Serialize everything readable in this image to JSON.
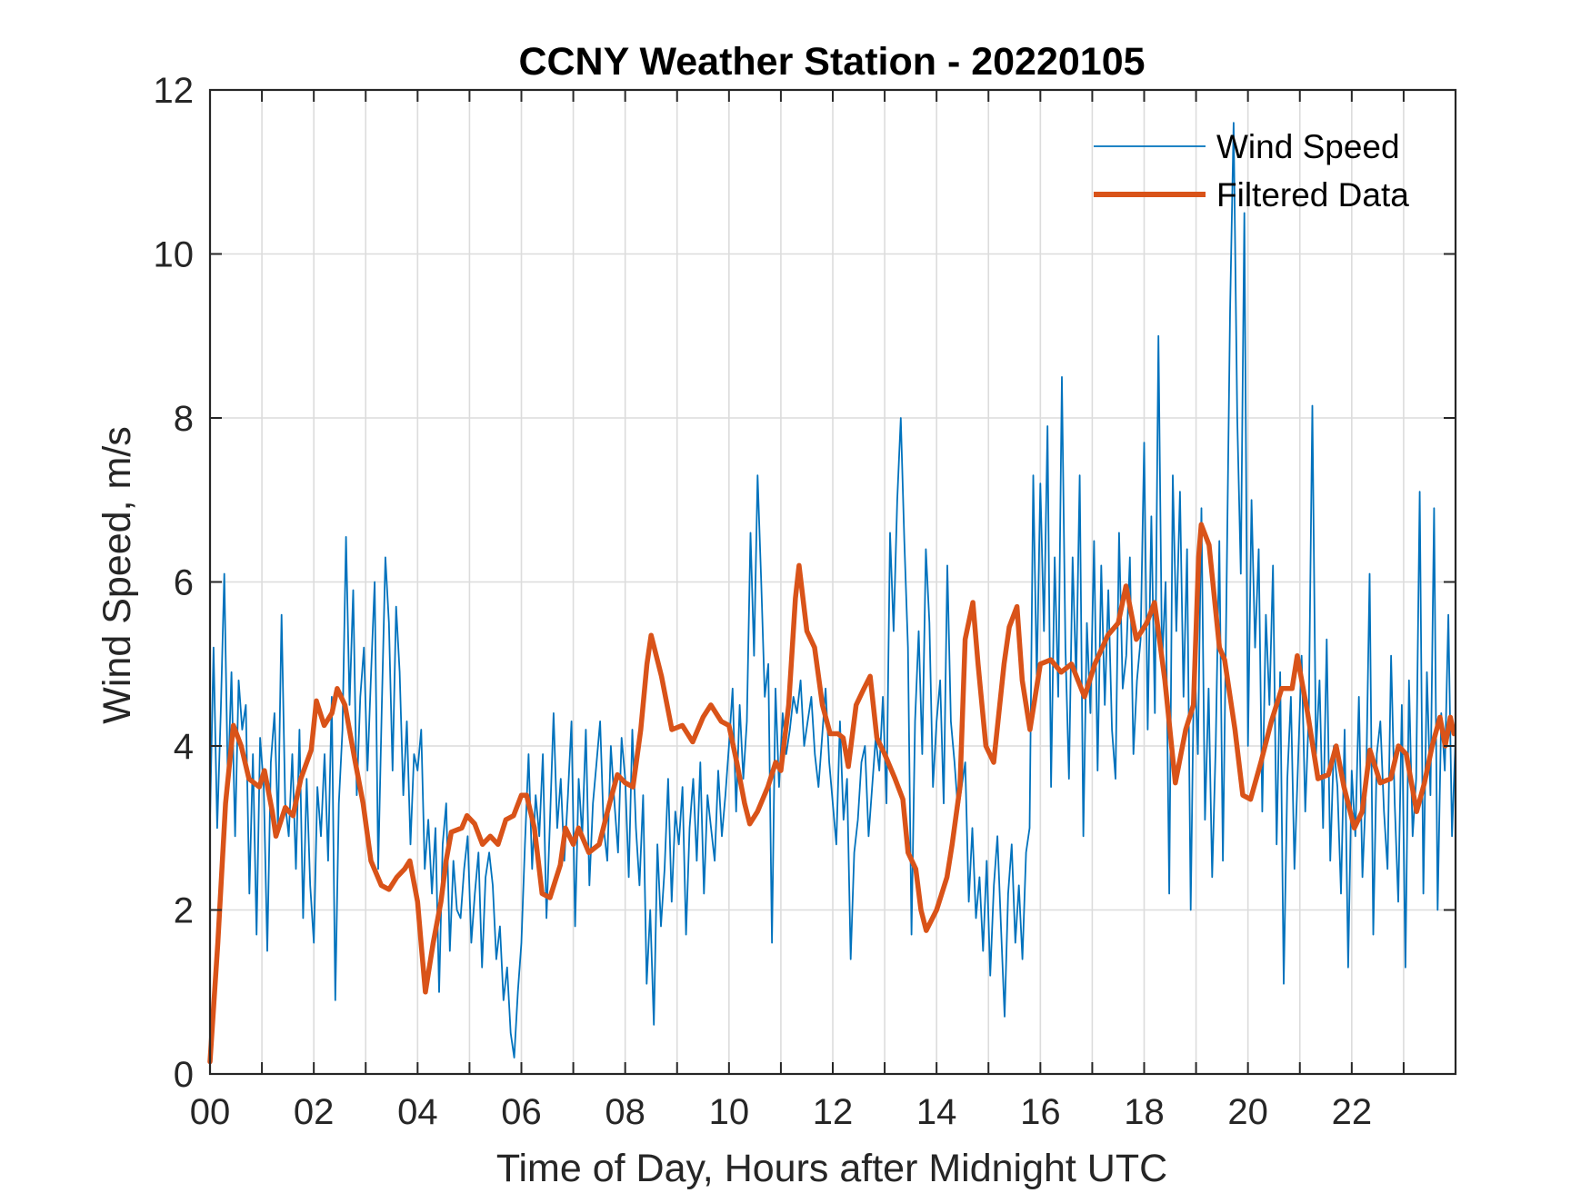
{
  "chart_data": {
    "type": "line",
    "title": "CCNY Weather Station - 20220105",
    "xlabel": "Time of Day, Hours after Midnight UTC",
    "ylabel": "Wind Speed, m/s",
    "xlim": [
      0,
      24
    ],
    "ylim": [
      0,
      12
    ],
    "grid": true,
    "legend_position": "top-right",
    "x_ticks": [
      0,
      2,
      4,
      6,
      8,
      10,
      12,
      14,
      16,
      18,
      20,
      22
    ],
    "x_tick_labels": [
      "00",
      "02",
      "04",
      "06",
      "08",
      "10",
      "12",
      "14",
      "16",
      "18",
      "20",
      "22"
    ],
    "x_minor_grid_step": 1,
    "y_ticks": [
      0,
      2,
      4,
      6,
      8,
      10,
      12
    ],
    "y_tick_labels": [
      "0",
      "2",
      "4",
      "6",
      "8",
      "10",
      "12"
    ],
    "series": [
      {
        "name": "Wind Speed",
        "color": "#0072BD",
        "style": "thin",
        "sample_interval_hours": 0.05,
        "values": [
          3.1,
          5.2,
          3.0,
          4.4,
          6.1,
          3.5,
          4.9,
          2.9,
          4.8,
          4.2,
          4.5,
          2.2,
          3.9,
          1.7,
          4.1,
          3.5,
          1.5,
          3.8,
          4.4,
          3.0,
          5.6,
          3.3,
          2.9,
          3.9,
          2.5,
          4.2,
          1.9,
          3.6,
          2.3,
          1.6,
          3.5,
          2.9,
          3.9,
          2.6,
          4.6,
          0.9,
          3.3,
          4.2,
          6.55,
          4.5,
          5.9,
          3.4,
          4.6,
          5.2,
          3.7,
          4.9,
          6.0,
          2.5,
          4.5,
          6.3,
          5.5,
          3.7,
          5.7,
          4.9,
          3.4,
          4.3,
          2.8,
          3.9,
          3.7,
          4.2,
          2.5,
          3.1,
          2.2,
          3.0,
          1.0,
          2.8,
          3.3,
          1.5,
          2.6,
          2.0,
          1.9,
          2.5,
          2.9,
          1.6,
          2.2,
          2.7,
          1.3,
          2.4,
          2.7,
          2.3,
          1.4,
          1.8,
          0.9,
          1.3,
          0.5,
          0.2,
          1.0,
          1.6,
          2.8,
          3.9,
          2.5,
          3.4,
          2.9,
          3.9,
          1.9,
          3.1,
          4.4,
          3.0,
          3.6,
          2.6,
          3.4,
          4.3,
          1.8,
          3.6,
          2.9,
          4.2,
          2.3,
          3.3,
          3.8,
          4.3,
          3.0,
          2.6,
          4.0,
          3.3,
          2.7,
          4.1,
          3.6,
          2.4,
          4.2,
          3.0,
          2.3,
          3.4,
          1.1,
          2.0,
          0.6,
          2.8,
          1.8,
          2.5,
          3.6,
          2.1,
          3.2,
          2.8,
          3.5,
          1.7,
          3.0,
          3.6,
          2.6,
          3.8,
          2.2,
          3.4,
          3.0,
          2.6,
          3.7,
          2.9,
          3.4,
          4.0,
          4.7,
          3.2,
          4.5,
          3.6,
          4.3,
          6.6,
          5.1,
          7.3,
          6.0,
          4.6,
          5.0,
          1.6,
          4.7,
          3.5,
          4.4,
          3.9,
          4.2,
          4.6,
          4.4,
          4.8,
          4.0,
          4.3,
          4.6,
          3.9,
          3.5,
          4.1,
          4.7,
          3.8,
          3.3,
          2.8,
          4.3,
          3.1,
          3.6,
          1.4,
          2.7,
          3.1,
          3.8,
          4.0,
          2.9,
          3.5,
          4.1,
          3.7,
          4.6,
          3.3,
          6.6,
          5.4,
          7.0,
          8.0,
          6.5,
          5.2,
          1.7,
          4.3,
          5.4,
          3.9,
          6.4,
          5.5,
          3.5,
          4.3,
          4.8,
          3.3,
          6.2,
          4.3,
          3.8,
          3.2,
          3.5,
          3.8,
          2.1,
          3.0,
          1.9,
          2.4,
          1.5,
          2.6,
          1.2,
          2.3,
          2.9,
          1.8,
          0.7,
          2.2,
          2.8,
          1.6,
          2.3,
          1.4,
          2.7,
          3.0,
          7.3,
          4.8,
          7.2,
          5.4,
          7.9,
          3.5,
          6.3,
          4.6,
          8.5,
          5.2,
          3.6,
          6.3,
          4.8,
          7.3,
          2.9,
          5.5,
          4.4,
          6.5,
          3.7,
          6.2,
          4.5,
          5.9,
          4.2,
          3.6,
          6.6,
          4.7,
          5.1,
          6.3,
          3.9,
          4.8,
          5.3,
          7.7,
          4.2,
          6.8,
          4.4,
          9.0,
          5.0,
          6.0,
          2.2,
          7.3,
          5.4,
          7.1,
          4.6,
          6.4,
          2.0,
          5.2,
          3.9,
          6.9,
          3.1,
          4.7,
          2.4,
          4.0,
          6.5,
          2.6,
          5.8,
          9.3,
          11.6,
          8.0,
          6.1,
          10.5,
          4.0,
          7.0,
          5.2,
          6.4,
          3.2,
          5.6,
          4.5,
          6.2,
          2.8,
          4.9,
          1.1,
          3.6,
          4.6,
          2.5,
          3.8,
          5.1,
          3.2,
          4.4,
          8.15,
          3.9,
          4.8,
          3.0,
          5.3,
          2.6,
          4.0,
          3.5,
          2.2,
          4.2,
          1.3,
          3.7,
          2.9,
          4.6,
          2.4,
          3.5,
          6.1,
          1.7,
          3.9,
          4.3,
          3.2,
          2.5,
          5.1,
          3.3,
          2.1,
          4.5,
          1.3,
          4.8,
          2.9,
          3.6,
          7.1,
          2.2,
          4.9,
          3.4,
          6.9,
          2.0,
          4.4,
          3.7,
          5.6,
          2.9,
          4.1
        ]
      },
      {
        "name": "Filtered Data",
        "color": "#D95319",
        "style": "thick",
        "points": [
          [
            0,
            0.15
          ],
          [
            0.15,
            1.6
          ],
          [
            0.3,
            3.3
          ],
          [
            0.45,
            4.25
          ],
          [
            0.6,
            4.0
          ],
          [
            0.75,
            3.6
          ],
          [
            0.95,
            3.5
          ],
          [
            1.05,
            3.7
          ],
          [
            1.2,
            3.2
          ],
          [
            1.27,
            2.9
          ],
          [
            1.45,
            3.25
          ],
          [
            1.6,
            3.15
          ],
          [
            1.75,
            3.6
          ],
          [
            1.95,
            3.95
          ],
          [
            2.05,
            4.55
          ],
          [
            2.2,
            4.25
          ],
          [
            2.35,
            4.4
          ],
          [
            2.45,
            4.7
          ],
          [
            2.6,
            4.5
          ],
          [
            2.8,
            3.8
          ],
          [
            2.95,
            3.3
          ],
          [
            3.1,
            2.6
          ],
          [
            3.3,
            2.3
          ],
          [
            3.45,
            2.25
          ],
          [
            3.6,
            2.4
          ],
          [
            3.75,
            2.5
          ],
          [
            3.85,
            2.6
          ],
          [
            4.0,
            2.1
          ],
          [
            4.08,
            1.5
          ],
          [
            4.15,
            1.0
          ],
          [
            4.3,
            1.6
          ],
          [
            4.45,
            2.1
          ],
          [
            4.55,
            2.6
          ],
          [
            4.65,
            2.95
          ],
          [
            4.85,
            3.0
          ],
          [
            4.95,
            3.15
          ],
          [
            5.1,
            3.05
          ],
          [
            5.25,
            2.8
          ],
          [
            5.4,
            2.9
          ],
          [
            5.55,
            2.8
          ],
          [
            5.7,
            3.1
          ],
          [
            5.85,
            3.15
          ],
          [
            6.0,
            3.4
          ],
          [
            6.1,
            3.4
          ],
          [
            6.25,
            3.0
          ],
          [
            6.4,
            2.2
          ],
          [
            6.55,
            2.15
          ],
          [
            6.75,
            2.55
          ],
          [
            6.85,
            3.0
          ],
          [
            7.0,
            2.8
          ],
          [
            7.1,
            3.0
          ],
          [
            7.3,
            2.7
          ],
          [
            7.5,
            2.8
          ],
          [
            7.7,
            3.3
          ],
          [
            7.85,
            3.65
          ],
          [
            8.0,
            3.55
          ],
          [
            8.15,
            3.5
          ],
          [
            8.3,
            4.2
          ],
          [
            8.42,
            5.0
          ],
          [
            8.5,
            5.35
          ],
          [
            8.7,
            4.85
          ],
          [
            8.9,
            4.2
          ],
          [
            9.1,
            4.25
          ],
          [
            9.3,
            4.05
          ],
          [
            9.5,
            4.35
          ],
          [
            9.65,
            4.5
          ],
          [
            9.85,
            4.3
          ],
          [
            10.0,
            4.25
          ],
          [
            10.15,
            3.8
          ],
          [
            10.3,
            3.3
          ],
          [
            10.4,
            3.05
          ],
          [
            10.55,
            3.2
          ],
          [
            10.75,
            3.5
          ],
          [
            10.9,
            3.8
          ],
          [
            11.0,
            3.7
          ],
          [
            11.15,
            4.5
          ],
          [
            11.28,
            5.8
          ],
          [
            11.35,
            6.2
          ],
          [
            11.5,
            5.4
          ],
          [
            11.65,
            5.2
          ],
          [
            11.8,
            4.5
          ],
          [
            11.95,
            4.15
          ],
          [
            12.1,
            4.15
          ],
          [
            12.2,
            4.1
          ],
          [
            12.3,
            3.75
          ],
          [
            12.45,
            4.5
          ],
          [
            12.6,
            4.7
          ],
          [
            12.72,
            4.85
          ],
          [
            12.85,
            4.1
          ],
          [
            13.0,
            3.9
          ],
          [
            13.2,
            3.6
          ],
          [
            13.35,
            3.35
          ],
          [
            13.45,
            2.7
          ],
          [
            13.6,
            2.5
          ],
          [
            13.7,
            2.0
          ],
          [
            13.8,
            1.75
          ],
          [
            14.0,
            2.0
          ],
          [
            14.2,
            2.4
          ],
          [
            14.3,
            2.8
          ],
          [
            14.45,
            3.5
          ],
          [
            14.55,
            5.3
          ],
          [
            14.7,
            5.75
          ],
          [
            14.8,
            5.0
          ],
          [
            14.95,
            4.0
          ],
          [
            15.1,
            3.8
          ],
          [
            15.3,
            5.0
          ],
          [
            15.4,
            5.45
          ],
          [
            15.55,
            5.7
          ],
          [
            15.65,
            4.8
          ],
          [
            15.8,
            4.2
          ],
          [
            16.0,
            5.0
          ],
          [
            16.2,
            5.05
          ],
          [
            16.4,
            4.9
          ],
          [
            16.6,
            5.0
          ],
          [
            16.85,
            4.6
          ],
          [
            17.05,
            5.0
          ],
          [
            17.3,
            5.35
          ],
          [
            17.5,
            5.5
          ],
          [
            17.65,
            5.95
          ],
          [
            17.85,
            5.3
          ],
          [
            18.05,
            5.5
          ],
          [
            18.2,
            5.75
          ],
          [
            18.4,
            4.8
          ],
          [
            18.6,
            3.55
          ],
          [
            18.8,
            4.2
          ],
          [
            18.95,
            4.5
          ],
          [
            19.05,
            6.3
          ],
          [
            19.1,
            6.7
          ],
          [
            19.25,
            6.45
          ],
          [
            19.45,
            5.2
          ],
          [
            19.55,
            5.05
          ],
          [
            19.75,
            4.2
          ],
          [
            19.9,
            3.4
          ],
          [
            20.05,
            3.35
          ],
          [
            20.25,
            3.8
          ],
          [
            20.45,
            4.3
          ],
          [
            20.65,
            4.7
          ],
          [
            20.85,
            4.7
          ],
          [
            20.95,
            5.1
          ],
          [
            21.15,
            4.4
          ],
          [
            21.35,
            3.6
          ],
          [
            21.55,
            3.65
          ],
          [
            21.7,
            4.0
          ],
          [
            21.85,
            3.5
          ],
          [
            22.05,
            3.0
          ],
          [
            22.2,
            3.2
          ],
          [
            22.35,
            3.95
          ],
          [
            22.55,
            3.55
          ],
          [
            22.75,
            3.6
          ],
          [
            22.9,
            4.0
          ],
          [
            23.05,
            3.9
          ],
          [
            23.25,
            3.2
          ],
          [
            23.4,
            3.55
          ],
          [
            23.55,
            4.0
          ],
          [
            23.7,
            4.35
          ],
          [
            23.8,
            4.0
          ],
          [
            23.9,
            4.35
          ],
          [
            23.97,
            4.15
          ]
        ]
      }
    ],
    "legend": [
      {
        "label": "Wind Speed",
        "color": "#0072BD"
      },
      {
        "label": "Filtered Data",
        "color": "#D95319"
      }
    ]
  }
}
